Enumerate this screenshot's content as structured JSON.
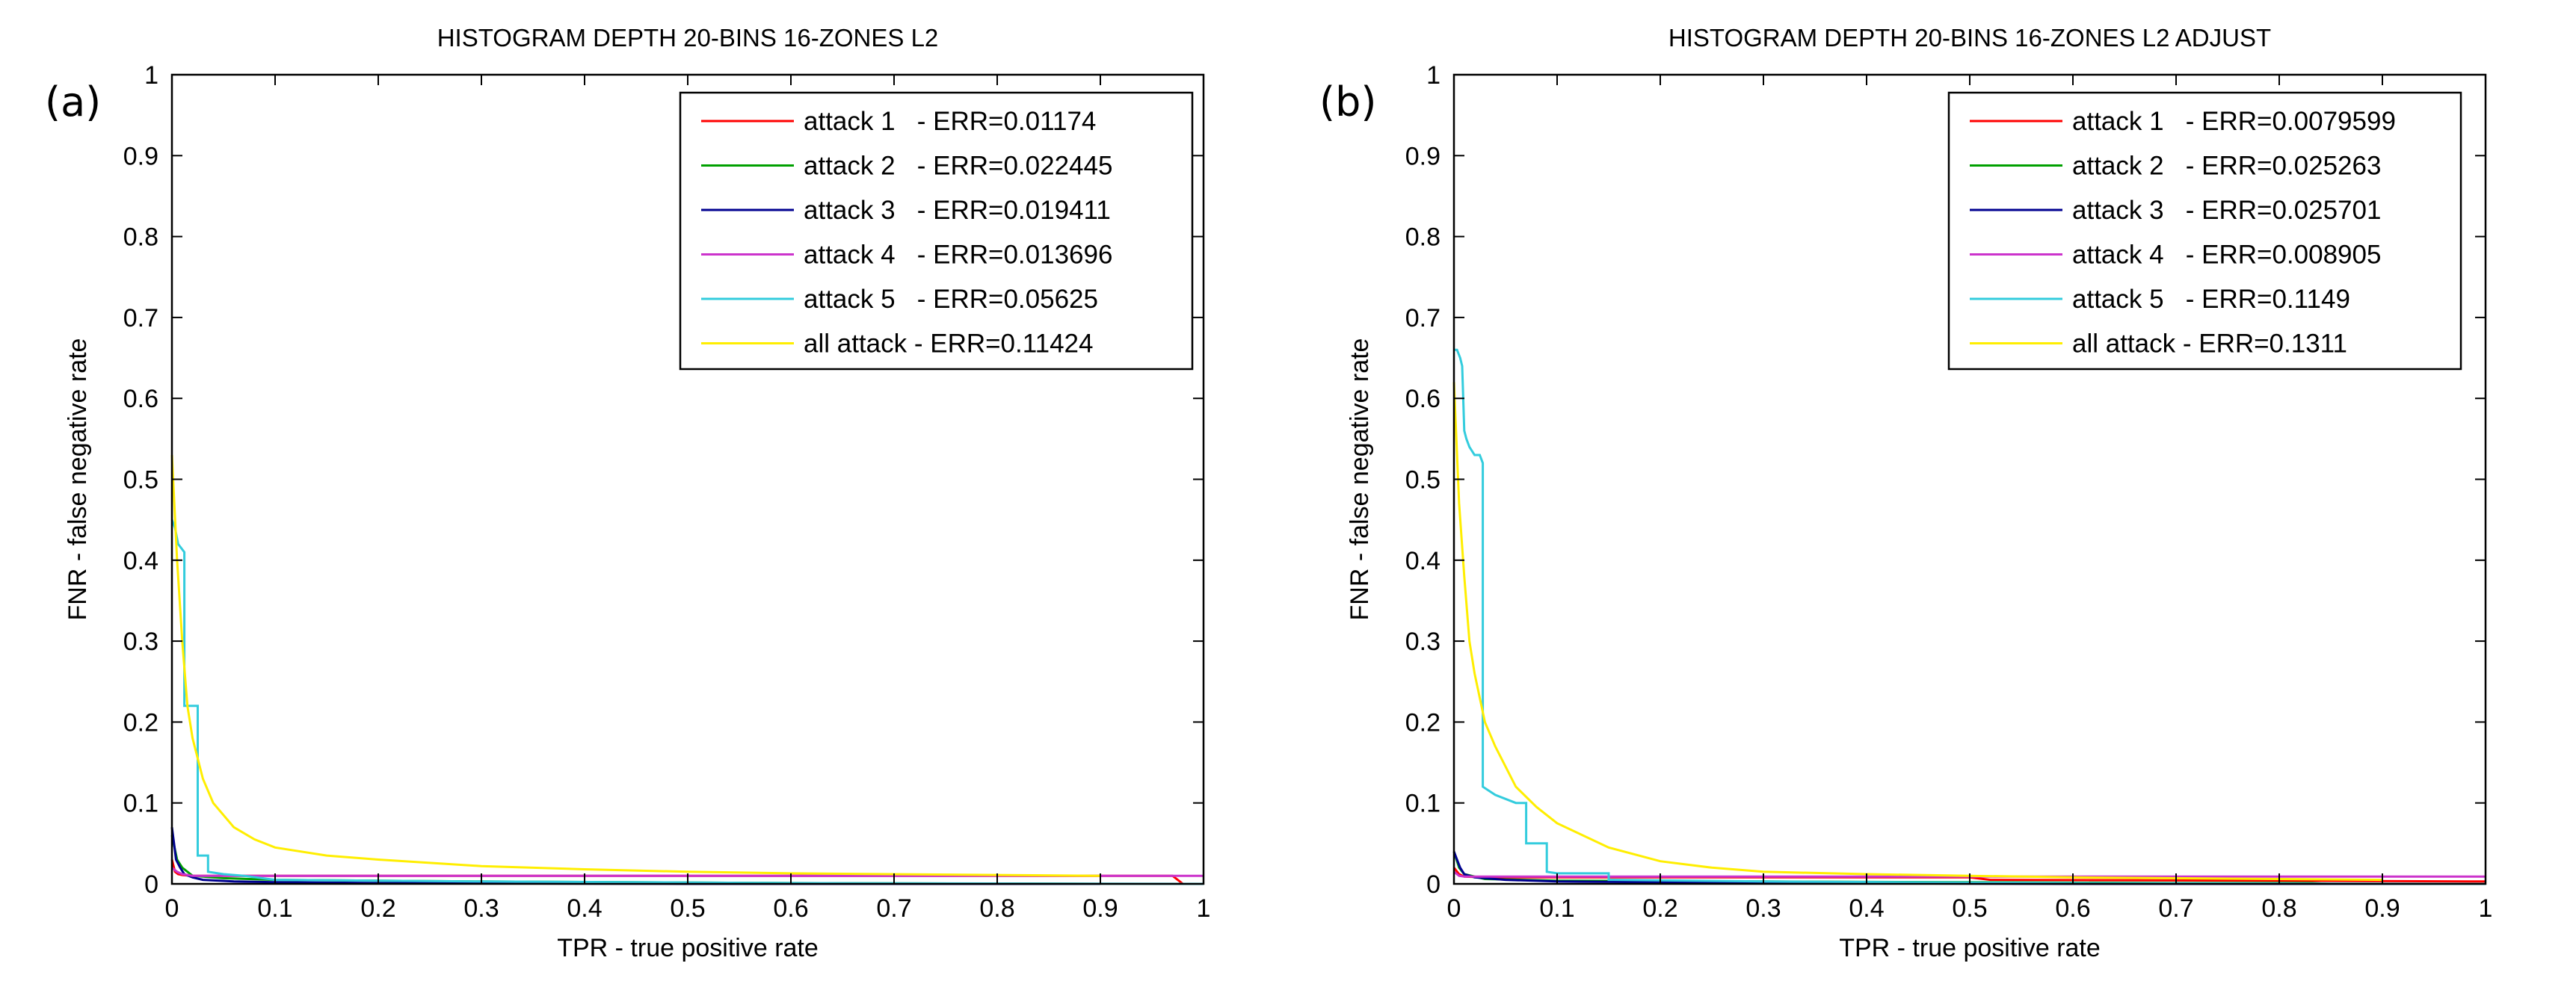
{
  "chart_data": [
    {
      "type": "line",
      "panel_label": "(a)",
      "title": "HISTOGRAM DEPTH 20-BINS 16-ZONES L2",
      "xlabel": "TPR - true positive rate",
      "ylabel": "FNR - false negative rate",
      "xlim": [
        0,
        1
      ],
      "ylim": [
        0,
        1
      ],
      "xticks": [
        "0",
        "0.1",
        "0.2",
        "0.3",
        "0.4",
        "0.5",
        "0.6",
        "0.7",
        "0.8",
        "0.9",
        "1"
      ],
      "yticks": [
        "0",
        "0.1",
        "0.2",
        "0.3",
        "0.4",
        "0.5",
        "0.6",
        "0.7",
        "0.8",
        "0.9",
        "1"
      ],
      "grid": false,
      "legend_position": "top-right",
      "series": [
        {
          "name": "attack 1   - ERR=0.01174",
          "color": "#ff0000",
          "x": [
            0,
            0.003,
            0.006,
            0.01,
            0.02,
            0.05,
            0.2,
            0.5,
            0.8,
            0.97,
            0.98,
            1.0
          ],
          "y": [
            0.03,
            0.015,
            0.012,
            0.011,
            0.01,
            0.01,
            0.01,
            0.01,
            0.01,
            0.01,
            0.0,
            0.0
          ]
        },
        {
          "name": "attack 2   - ERR=0.022445",
          "color": "#00a000",
          "x": [
            0,
            0.005,
            0.01,
            0.02,
            0.05,
            0.1,
            0.3,
            0.6,
            0.9
          ],
          "y": [
            0.06,
            0.03,
            0.02,
            0.01,
            0.007,
            0.005,
            0.003,
            0.001,
            0.0
          ]
        },
        {
          "name": "attack 3   - ERR=0.019411",
          "color": "#000090",
          "x": [
            0,
            0.002,
            0.004,
            0.008,
            0.012,
            0.02,
            0.03,
            0.06,
            0.1,
            0.2,
            0.5,
            0.9
          ],
          "y": [
            0.07,
            0.05,
            0.03,
            0.02,
            0.012,
            0.008,
            0.005,
            0.003,
            0.002,
            0.001,
            0.0,
            0.0
          ]
        },
        {
          "name": "attack 4   - ERR=0.013696",
          "color": "#cc33cc",
          "x": [
            0,
            0.005,
            0.01,
            0.02,
            0.05,
            0.2,
            0.5,
            0.8,
            1.0
          ],
          "y": [
            0.02,
            0.015,
            0.012,
            0.01,
            0.01,
            0.01,
            0.01,
            0.01,
            0.01
          ]
        },
        {
          "name": "attack 5   - ERR=0.05625",
          "color": "#33ccdd",
          "x": [
            0,
            0.003,
            0.006,
            0.006,
            0.012,
            0.012,
            0.014,
            0.018,
            0.018,
            0.025,
            0.025,
            0.035,
            0.035,
            0.05,
            0.07,
            0.1,
            0.3,
            0.6,
            1.0
          ],
          "y": [
            0.45,
            0.44,
            0.42,
            0.42,
            0.41,
            0.22,
            0.22,
            0.22,
            0.22,
            0.22,
            0.035,
            0.035,
            0.015,
            0.012,
            0.01,
            0.005,
            0.003,
            0.001,
            0.0
          ]
        },
        {
          "name": "all attack - ERR=0.11424",
          "color": "#ffee00",
          "x": [
            0,
            0.005,
            0.01,
            0.015,
            0.02,
            0.03,
            0.04,
            0.06,
            0.08,
            0.1,
            0.15,
            0.2,
            0.3,
            0.4,
            0.5,
            0.6,
            0.8,
            0.9
          ],
          "y": [
            0.53,
            0.4,
            0.3,
            0.22,
            0.18,
            0.13,
            0.1,
            0.07,
            0.055,
            0.045,
            0.035,
            0.03,
            0.022,
            0.018,
            0.015,
            0.013,
            0.011,
            0.01
          ]
        }
      ]
    },
    {
      "type": "line",
      "panel_label": "(b)",
      "title": "HISTOGRAM DEPTH 20-BINS 16-ZONES L2 ADJUST",
      "xlabel": "TPR - true positive rate",
      "ylabel": "FNR - false negative rate",
      "xlim": [
        0,
        1
      ],
      "ylim": [
        0,
        1
      ],
      "xticks": [
        "0",
        "0.1",
        "0.2",
        "0.3",
        "0.4",
        "0.5",
        "0.6",
        "0.7",
        "0.8",
        "0.9",
        "1"
      ],
      "yticks": [
        "0",
        "0.1",
        "0.2",
        "0.3",
        "0.4",
        "0.5",
        "0.6",
        "0.7",
        "0.8",
        "0.9",
        "1"
      ],
      "grid": false,
      "legend_position": "top-right",
      "series": [
        {
          "name": "attack 1   - ERR=0.0079599",
          "color": "#ff0000",
          "x": [
            0,
            0.005,
            0.01,
            0.03,
            0.1,
            0.3,
            0.5,
            0.52,
            0.8,
            1.0
          ],
          "y": [
            0.02,
            0.012,
            0.009,
            0.008,
            0.008,
            0.008,
            0.008,
            0.005,
            0.004,
            0.003
          ]
        },
        {
          "name": "attack 2   - ERR=0.025263",
          "color": "#00a000",
          "x": [
            0,
            0.005,
            0.01,
            0.03,
            0.1,
            0.3,
            0.5,
            0.7,
            0.83,
            0.85
          ],
          "y": [
            0.04,
            0.02,
            0.012,
            0.006,
            0.004,
            0.003,
            0.002,
            0.001,
            0.001,
            0.0
          ]
        },
        {
          "name": "attack 3   - ERR=0.025701",
          "color": "#000090",
          "x": [
            0,
            0.003,
            0.006,
            0.01,
            0.02,
            0.05,
            0.1,
            0.3,
            0.6,
            1.0
          ],
          "y": [
            0.04,
            0.03,
            0.02,
            0.012,
            0.008,
            0.005,
            0.003,
            0.001,
            0.0,
            0.0
          ]
        },
        {
          "name": "attack 4   - ERR=0.008905",
          "color": "#cc33cc",
          "x": [
            0,
            0.005,
            0.01,
            0.03,
            0.1,
            0.5,
            1.0
          ],
          "y": [
            0.015,
            0.01,
            0.009,
            0.009,
            0.009,
            0.009,
            0.009
          ]
        },
        {
          "name": "attack 5   - ERR=0.1149",
          "color": "#33ccdd",
          "x": [
            0,
            0.003,
            0.006,
            0.008,
            0.01,
            0.012,
            0.015,
            0.02,
            0.025,
            0.028,
            0.028,
            0.04,
            0.06,
            0.07,
            0.07,
            0.09,
            0.09,
            0.1,
            0.15,
            0.15,
            0.3,
            0.6,
            1.0
          ],
          "y": [
            0.66,
            0.66,
            0.65,
            0.64,
            0.56,
            0.55,
            0.54,
            0.53,
            0.53,
            0.52,
            0.12,
            0.11,
            0.1,
            0.1,
            0.05,
            0.05,
            0.015,
            0.013,
            0.013,
            0.005,
            0.003,
            0.001,
            0.0
          ]
        },
        {
          "name": "all attack - ERR=0.1311",
          "color": "#ffee00",
          "x": [
            0,
            0.005,
            0.01,
            0.015,
            0.02,
            0.03,
            0.04,
            0.06,
            0.08,
            0.1,
            0.15,
            0.2,
            0.25,
            0.3,
            0.4,
            0.5,
            0.6,
            0.8,
            0.9
          ],
          "y": [
            0.62,
            0.47,
            0.38,
            0.3,
            0.26,
            0.2,
            0.17,
            0.12,
            0.095,
            0.075,
            0.045,
            0.028,
            0.02,
            0.015,
            0.012,
            0.01,
            0.008,
            0.006,
            0.005
          ]
        }
      ]
    }
  ]
}
